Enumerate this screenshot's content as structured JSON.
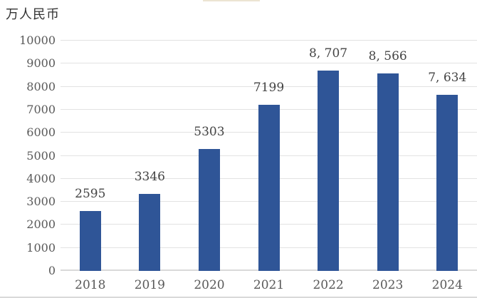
{
  "chart_data": {
    "type": "bar",
    "unit_label": "万人民币",
    "categories": [
      "2018",
      "2019",
      "2020",
      "2021",
      "2022",
      "2023",
      "2024"
    ],
    "values": [
      2595,
      3346,
      5303,
      7199,
      8707,
      8566,
      7634
    ],
    "value_labels": [
      "2595",
      "3346",
      "5303",
      "7199",
      "8, 707",
      "8, 566",
      "7, 634"
    ],
    "ylim": [
      0,
      10000
    ],
    "ytick_step": 1000,
    "ytick_labels": [
      "0",
      "1000",
      "2000",
      "3000",
      "4000",
      "5000",
      "6000",
      "7000",
      "8000",
      "9000",
      "10000"
    ],
    "grid": "horizontal gridlines on",
    "legend": "none",
    "colors": {
      "bar": "#2f5597",
      "gridline": "#e2e2e2",
      "axis_line": "#d9d9d9",
      "tick_text": "#595959",
      "value_label_text": "#444444",
      "unit_label_text": "#333333"
    }
  }
}
